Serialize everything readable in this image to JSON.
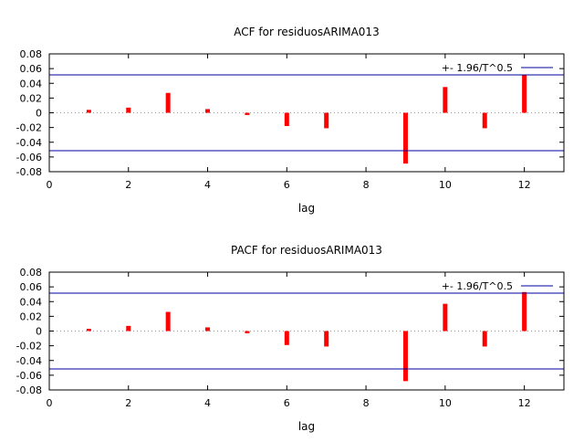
{
  "band_label": "+- 1.96/T^0.5",
  "colors": {
    "bars": "#ff0000",
    "band": "#0000a0",
    "axis": "#000000",
    "zero_line": "#a0a0a0"
  },
  "chart_data": [
    {
      "type": "bar",
      "title": "ACF for residuosARIMA013",
      "xlabel": "lag",
      "ylabel": "",
      "xlim": [
        0,
        13
      ],
      "ylim": [
        -0.08,
        0.08
      ],
      "xticks": [
        0,
        2,
        4,
        6,
        8,
        10,
        12
      ],
      "xtick_labels": [
        "0",
        "2",
        "4",
        "6",
        "8",
        "10",
        "12"
      ],
      "yticks": [
        -0.08,
        -0.06,
        -0.04,
        -0.02,
        0,
        0.02,
        0.04,
        0.06,
        0.08
      ],
      "ytick_labels": [
        "-0.08",
        "-0.06",
        "-0.04",
        "-0.02",
        "0",
        "0.02",
        "0.04",
        "0.06",
        "0.08"
      ],
      "band": 0.0515,
      "legend_position": "top-right",
      "x": [
        1,
        2,
        3,
        4,
        5,
        6,
        7,
        8,
        9,
        10,
        11,
        12
      ],
      "values": [
        0.004,
        0.007,
        0.027,
        0.005,
        -0.003,
        -0.018,
        -0.021,
        0.0,
        -0.069,
        0.035,
        -0.021,
        0.052
      ]
    },
    {
      "type": "bar",
      "title": "PACF for residuosARIMA013",
      "xlabel": "lag",
      "ylabel": "",
      "xlim": [
        0,
        13
      ],
      "ylim": [
        -0.08,
        0.08
      ],
      "xticks": [
        0,
        2,
        4,
        6,
        8,
        10,
        12
      ],
      "xtick_labels": [
        "0",
        "2",
        "4",
        "6",
        "8",
        "10",
        "12"
      ],
      "yticks": [
        -0.08,
        -0.06,
        -0.04,
        -0.02,
        0,
        0.02,
        0.04,
        0.06,
        0.08
      ],
      "ytick_labels": [
        "-0.08",
        "-0.06",
        "-0.04",
        "-0.02",
        "0",
        "0.02",
        "0.04",
        "0.06",
        "0.08"
      ],
      "band": 0.0515,
      "legend_position": "top-right",
      "x": [
        1,
        2,
        3,
        4,
        5,
        6,
        7,
        8,
        9,
        10,
        11,
        12
      ],
      "values": [
        0.003,
        0.007,
        0.026,
        0.005,
        -0.003,
        -0.019,
        -0.021,
        0.0,
        -0.068,
        0.037,
        -0.021,
        0.053
      ]
    }
  ]
}
